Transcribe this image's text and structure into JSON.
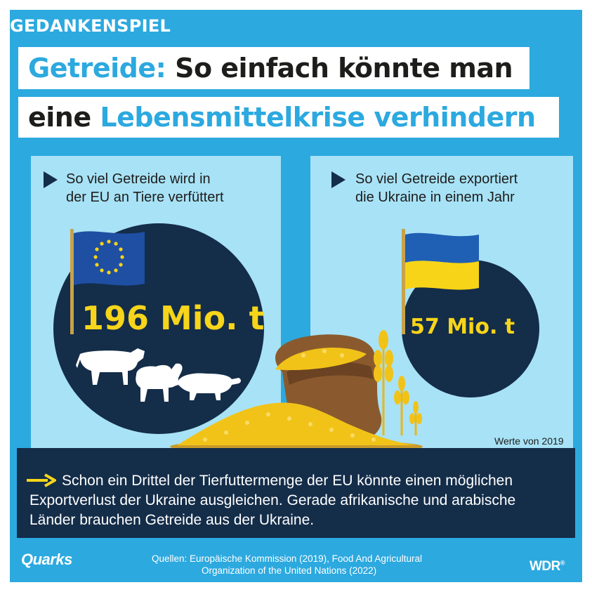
{
  "header": {
    "kicker": "GEDANKENSPIEL",
    "title_line1_accent": "Getreide:",
    "title_line1_rest": " So einfach könnte man",
    "title_line2_lead": "eine ",
    "title_line2_accent": "Lebensmittelkrise verhindern"
  },
  "panels": {
    "eu": {
      "text_line1": "So viel Getreide wird in",
      "text_line2": "der EU an Tiere verfüttert",
      "value": "196 Mio. t",
      "icons": [
        "eu-flag-icon",
        "cow-icon",
        "sheep-icon",
        "pig-icon"
      ]
    },
    "ukraine": {
      "text_line1": "So viel Getreide exportiert",
      "text_line2": "die Ukraine in einem Jahr",
      "value": "57 Mio. t",
      "icons": [
        "ukraine-flag-icon",
        "wheat-icon"
      ]
    },
    "note": "Werte von 2019"
  },
  "conclusion": {
    "line1": "Schon ein Drittel der Tierfuttermenge der EU könnte einen möglichen",
    "line2": "Exportverlust der Ukraine ausgleichen. Gerade afrikanische und arabische",
    "line3": "Länder brauchen Getreide aus der Ukraine."
  },
  "footer": {
    "sources_line1": "Quellen:  Europäische Kommission (2019), Food And Agricultural",
    "sources_line2": "Organization of the United Nations (2022)",
    "logo_left": "Quarks",
    "logo_right": "WDR",
    "logo_right_mark": "®"
  },
  "colors": {
    "background": "#2ca9df",
    "panel": "#a8e2f6",
    "navy": "#142d49",
    "accent_yellow": "#f6d51a",
    "ukraine_blue": "#1f5fb4",
    "ukraine_yellow": "#f7d417",
    "eu_blue": "#1f4fa3"
  }
}
